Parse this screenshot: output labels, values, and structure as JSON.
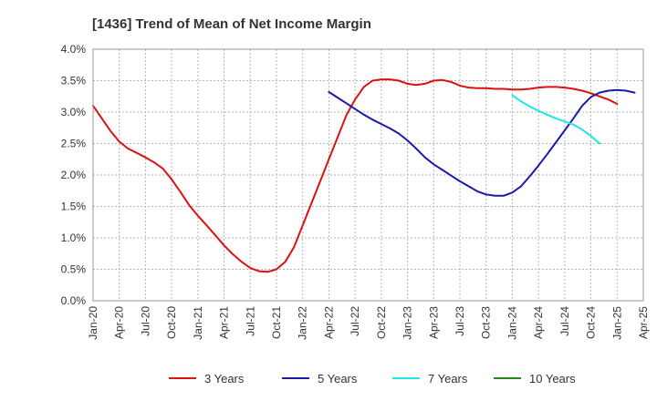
{
  "chart_data": {
    "type": "line",
    "title": "[1436]  Trend of Mean of Net Income Margin",
    "xlabel": "",
    "ylabel": "",
    "ylim": [
      0,
      4.0
    ],
    "yticks": [
      "0.0%",
      "0.5%",
      "1.0%",
      "1.5%",
      "2.0%",
      "2.5%",
      "3.0%",
      "3.5%",
      "4.0%"
    ],
    "xticks": [
      "Jan-20",
      "Apr-20",
      "Jul-20",
      "Oct-20",
      "Jan-21",
      "Apr-21",
      "Jul-21",
      "Oct-21",
      "Jan-22",
      "Apr-22",
      "Jul-22",
      "Oct-22",
      "Jan-23",
      "Apr-23",
      "Jul-23",
      "Oct-23",
      "Jan-24",
      "Apr-24",
      "Jul-24",
      "Oct-24",
      "Jan-25",
      "Apr-25"
    ],
    "grid": true,
    "legend_position": "bottom",
    "series": [
      {
        "name": "3 Years",
        "color": "#dd1111",
        "points": [
          [
            "2020-01",
            3.1
          ],
          [
            "2020-02",
            2.9
          ],
          [
            "2020-03",
            2.7
          ],
          [
            "2020-04",
            2.53
          ],
          [
            "2020-05",
            2.42
          ],
          [
            "2020-06",
            2.35
          ],
          [
            "2020-07",
            2.28
          ],
          [
            "2020-08",
            2.2
          ],
          [
            "2020-09",
            2.1
          ],
          [
            "2020-10",
            1.93
          ],
          [
            "2020-11",
            1.73
          ],
          [
            "2020-12",
            1.52
          ],
          [
            "2021-01",
            1.35
          ],
          [
            "2021-02",
            1.2
          ],
          [
            "2021-03",
            1.04
          ],
          [
            "2021-04",
            0.88
          ],
          [
            "2021-05",
            0.74
          ],
          [
            "2021-06",
            0.62
          ],
          [
            "2021-07",
            0.52
          ],
          [
            "2021-08",
            0.47
          ],
          [
            "2021-09",
            0.46
          ],
          [
            "2021-10",
            0.5
          ],
          [
            "2021-11",
            0.62
          ],
          [
            "2021-12",
            0.85
          ],
          [
            "2022-01",
            1.2
          ],
          [
            "2022-02",
            1.55
          ],
          [
            "2022-03",
            1.9
          ],
          [
            "2022-04",
            2.25
          ],
          [
            "2022-05",
            2.6
          ],
          [
            "2022-06",
            2.95
          ],
          [
            "2022-07",
            3.2
          ],
          [
            "2022-08",
            3.4
          ],
          [
            "2022-09",
            3.5
          ],
          [
            "2022-10",
            3.52
          ],
          [
            "2022-11",
            3.52
          ],
          [
            "2022-12",
            3.5
          ],
          [
            "2023-01",
            3.45
          ],
          [
            "2023-02",
            3.43
          ],
          [
            "2023-03",
            3.45
          ],
          [
            "2023-04",
            3.5
          ],
          [
            "2023-05",
            3.51
          ],
          [
            "2023-06",
            3.48
          ],
          [
            "2023-07",
            3.42
          ],
          [
            "2023-08",
            3.39
          ],
          [
            "2023-09",
            3.38
          ],
          [
            "2023-10",
            3.38
          ],
          [
            "2023-11",
            3.37
          ],
          [
            "2023-12",
            3.37
          ],
          [
            "2024-01",
            3.36
          ],
          [
            "2024-02",
            3.36
          ],
          [
            "2024-03",
            3.37
          ],
          [
            "2024-04",
            3.39
          ],
          [
            "2024-05",
            3.4
          ],
          [
            "2024-06",
            3.4
          ],
          [
            "2024-07",
            3.39
          ],
          [
            "2024-08",
            3.37
          ],
          [
            "2024-09",
            3.34
          ],
          [
            "2024-10",
            3.3
          ],
          [
            "2024-11",
            3.25
          ],
          [
            "2024-12",
            3.2
          ],
          [
            "2025-01",
            3.13
          ]
        ]
      },
      {
        "name": "5 Years",
        "color": "#1a1aaa",
        "points": [
          [
            "2022-04",
            3.32
          ],
          [
            "2022-05",
            3.23
          ],
          [
            "2022-06",
            3.14
          ],
          [
            "2022-07",
            3.05
          ],
          [
            "2022-08",
            2.96
          ],
          [
            "2022-09",
            2.88
          ],
          [
            "2022-10",
            2.81
          ],
          [
            "2022-11",
            2.74
          ],
          [
            "2022-12",
            2.66
          ],
          [
            "2023-01",
            2.55
          ],
          [
            "2023-02",
            2.42
          ],
          [
            "2023-03",
            2.28
          ],
          [
            "2023-04",
            2.17
          ],
          [
            "2023-05",
            2.08
          ],
          [
            "2023-06",
            1.99
          ],
          [
            "2023-07",
            1.9
          ],
          [
            "2023-08",
            1.82
          ],
          [
            "2023-09",
            1.74
          ],
          [
            "2023-10",
            1.69
          ],
          [
            "2023-11",
            1.67
          ],
          [
            "2023-12",
            1.67
          ],
          [
            "2024-01",
            1.72
          ],
          [
            "2024-02",
            1.82
          ],
          [
            "2024-03",
            1.98
          ],
          [
            "2024-04",
            2.15
          ],
          [
            "2024-05",
            2.33
          ],
          [
            "2024-06",
            2.52
          ],
          [
            "2024-07",
            2.71
          ],
          [
            "2024-08",
            2.9
          ],
          [
            "2024-09",
            3.1
          ],
          [
            "2024-10",
            3.24
          ],
          [
            "2024-11",
            3.31
          ],
          [
            "2024-12",
            3.34
          ],
          [
            "2025-01",
            3.35
          ],
          [
            "2025-02",
            3.34
          ],
          [
            "2025-03",
            3.31
          ]
        ]
      },
      {
        "name": "7 Years",
        "color": "#22e5e5",
        "points": [
          [
            "2024-01",
            3.27
          ],
          [
            "2024-02",
            3.17
          ],
          [
            "2024-03",
            3.09
          ],
          [
            "2024-04",
            3.02
          ],
          [
            "2024-05",
            2.96
          ],
          [
            "2024-06",
            2.9
          ],
          [
            "2024-07",
            2.85
          ],
          [
            "2024-08",
            2.8
          ],
          [
            "2024-09",
            2.72
          ],
          [
            "2024-10",
            2.62
          ],
          [
            "2024-11",
            2.5
          ]
        ]
      },
      {
        "name": "10 Years",
        "color": "#228822",
        "points": []
      }
    ]
  }
}
